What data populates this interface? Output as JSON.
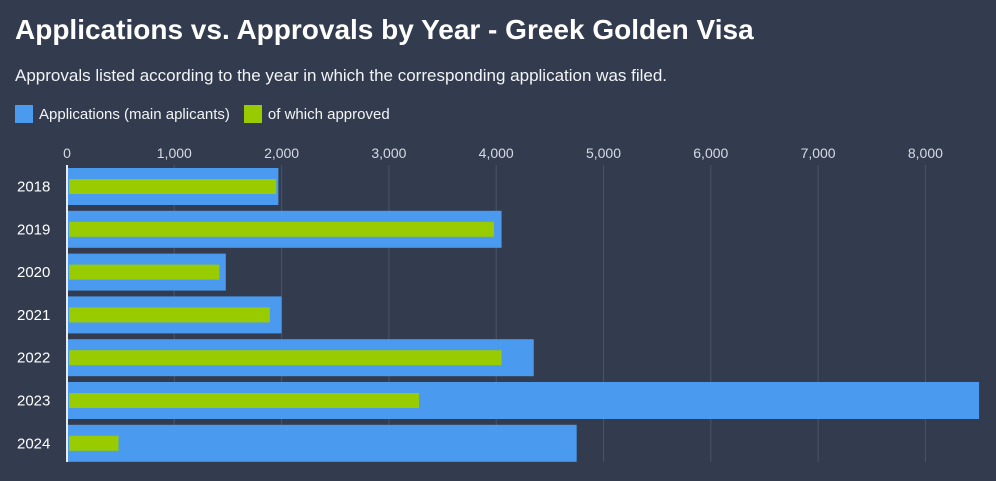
{
  "chart_data": {
    "type": "bar",
    "orientation": "horizontal",
    "title": "Applications vs. Approvals by Year - Greek Golden Visa",
    "subtitle": "Approvals listed according to the year in which the corresponding application was filed.",
    "categories": [
      "2018",
      "2019",
      "2020",
      "2021",
      "2022",
      "2023",
      "2024"
    ],
    "series": [
      {
        "name": "Applications (main aplicants)",
        "color": "#4a9af0",
        "values": [
          1970,
          4050,
          1480,
          2000,
          4350,
          8500,
          4750
        ]
      },
      {
        "name": "of which approved",
        "color": "#99cc00",
        "values": [
          1950,
          3980,
          1420,
          1890,
          4050,
          3280,
          480
        ]
      }
    ],
    "xticks": [
      "0",
      "1,000",
      "2,000",
      "3,000",
      "4,000",
      "5,000",
      "6,000",
      "7,000",
      "8,000"
    ],
    "xlim": [
      0,
      8500
    ],
    "grid": true,
    "legend_position": "top-left"
  }
}
